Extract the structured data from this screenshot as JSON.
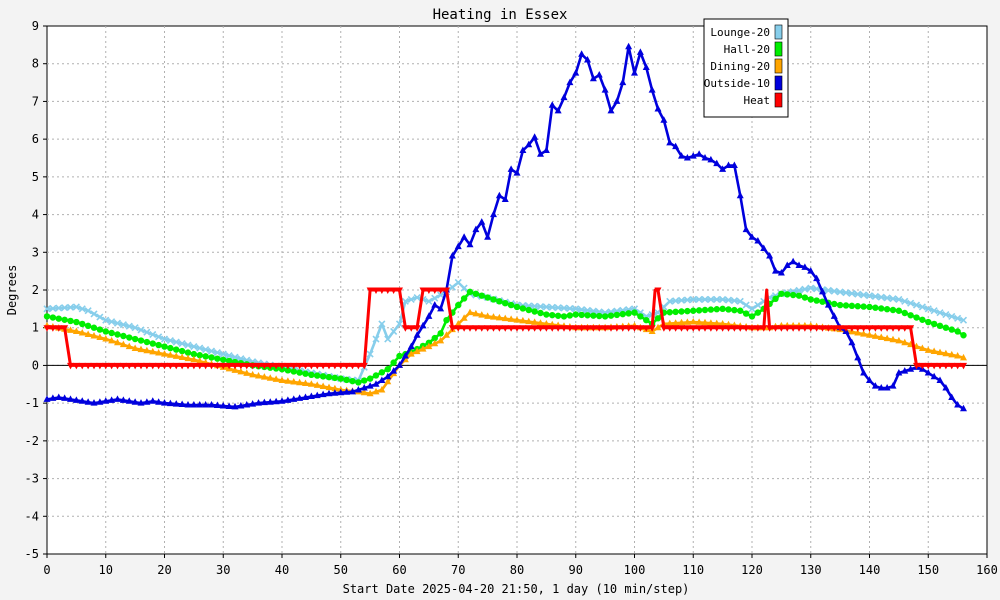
{
  "chart_data": {
    "type": "line",
    "title": "Heating in Essex",
    "xlabel": "Start Date 2025-04-20 21:50, 1 day (10 min/step)",
    "ylabel": "Degrees",
    "xlim": [
      0,
      160
    ],
    "ylim": [
      -5,
      9
    ],
    "x_ticks": [
      0,
      10,
      20,
      30,
      40,
      50,
      60,
      70,
      80,
      90,
      100,
      110,
      120,
      130,
      140,
      150,
      160
    ],
    "y_ticks": [
      -5,
      -4,
      -3,
      -2,
      -1,
      0,
      1,
      2,
      3,
      4,
      5,
      6,
      7,
      8,
      9
    ],
    "grid": true,
    "legend_position": "top-right",
    "series": [
      {
        "name": "Lounge-20",
        "color": "#87ceeb",
        "marker": "x",
        "points": [
          [
            0,
            1.5
          ],
          [
            5,
            1.55
          ],
          [
            7,
            1.45
          ],
          [
            10,
            1.2
          ],
          [
            15,
            1.0
          ],
          [
            20,
            0.7
          ],
          [
            25,
            0.5
          ],
          [
            30,
            0.3
          ],
          [
            35,
            0.1
          ],
          [
            40,
            -0.05
          ],
          [
            45,
            -0.2
          ],
          [
            50,
            -0.35
          ],
          [
            53,
            -0.4
          ],
          [
            55,
            0.3
          ],
          [
            57,
            1.1
          ],
          [
            58,
            0.7
          ],
          [
            60,
            1.1
          ],
          [
            61,
            1.7
          ],
          [
            63,
            1.8
          ],
          [
            65,
            1.7
          ],
          [
            68,
            1.95
          ],
          [
            70,
            2.2
          ],
          [
            72,
            1.9
          ],
          [
            75,
            1.8
          ],
          [
            80,
            1.6
          ],
          [
            85,
            1.55
          ],
          [
            90,
            1.5
          ],
          [
            95,
            1.4
          ],
          [
            100,
            1.5
          ],
          [
            102,
            1.3
          ],
          [
            104,
            1.4
          ],
          [
            106,
            1.7
          ],
          [
            110,
            1.75
          ],
          [
            115,
            1.75
          ],
          [
            118,
            1.7
          ],
          [
            120,
            1.5
          ],
          [
            123,
            1.8
          ],
          [
            125,
            1.9
          ],
          [
            130,
            2.05
          ],
          [
            135,
            1.95
          ],
          [
            140,
            1.85
          ],
          [
            145,
            1.75
          ],
          [
            150,
            1.5
          ],
          [
            155,
            1.25
          ],
          [
            156,
            1.2
          ]
        ]
      },
      {
        "name": "Hall-20",
        "color": "#00ee00",
        "marker": "circle",
        "points": [
          [
            0,
            1.3
          ],
          [
            5,
            1.15
          ],
          [
            10,
            0.9
          ],
          [
            15,
            0.7
          ],
          [
            20,
            0.5
          ],
          [
            25,
            0.3
          ],
          [
            30,
            0.15
          ],
          [
            35,
            0.0
          ],
          [
            40,
            -0.1
          ],
          [
            45,
            -0.25
          ],
          [
            50,
            -0.35
          ],
          [
            53,
            -0.45
          ],
          [
            55,
            -0.35
          ],
          [
            58,
            -0.1
          ],
          [
            60,
            0.25
          ],
          [
            62,
            0.35
          ],
          [
            65,
            0.6
          ],
          [
            67,
            0.85
          ],
          [
            68,
            1.2
          ],
          [
            70,
            1.6
          ],
          [
            72,
            1.95
          ],
          [
            75,
            1.8
          ],
          [
            80,
            1.55
          ],
          [
            85,
            1.35
          ],
          [
            88,
            1.3
          ],
          [
            90,
            1.35
          ],
          [
            95,
            1.3
          ],
          [
            100,
            1.4
          ],
          [
            103,
            1.1
          ],
          [
            105,
            1.4
          ],
          [
            110,
            1.45
          ],
          [
            115,
            1.5
          ],
          [
            118,
            1.45
          ],
          [
            120,
            1.3
          ],
          [
            122,
            1.5
          ],
          [
            125,
            1.9
          ],
          [
            128,
            1.85
          ],
          [
            130,
            1.75
          ],
          [
            135,
            1.6
          ],
          [
            140,
            1.55
          ],
          [
            145,
            1.45
          ],
          [
            150,
            1.15
          ],
          [
            155,
            0.9
          ],
          [
            156,
            0.8
          ]
        ]
      },
      {
        "name": "Dining-20",
        "color": "#ffa500",
        "marker": "triangle",
        "points": [
          [
            0,
            1.05
          ],
          [
            5,
            0.9
          ],
          [
            10,
            0.7
          ],
          [
            15,
            0.45
          ],
          [
            20,
            0.3
          ],
          [
            25,
            0.15
          ],
          [
            30,
            -0.05
          ],
          [
            35,
            -0.25
          ],
          [
            40,
            -0.4
          ],
          [
            45,
            -0.5
          ],
          [
            50,
            -0.65
          ],
          [
            53,
            -0.7
          ],
          [
            55,
            -0.75
          ],
          [
            57,
            -0.65
          ],
          [
            60,
            0.0
          ],
          [
            62,
            0.3
          ],
          [
            65,
            0.5
          ],
          [
            67,
            0.65
          ],
          [
            70,
            1.1
          ],
          [
            72,
            1.4
          ],
          [
            75,
            1.3
          ],
          [
            80,
            1.2
          ],
          [
            85,
            1.1
          ],
          [
            90,
            1.0
          ],
          [
            95,
            1.0
          ],
          [
            100,
            1.05
          ],
          [
            103,
            0.9
          ],
          [
            105,
            1.1
          ],
          [
            110,
            1.15
          ],
          [
            115,
            1.1
          ],
          [
            120,
            1.0
          ],
          [
            123,
            1.0
          ],
          [
            125,
            1.05
          ],
          [
            130,
            1.05
          ],
          [
            135,
            0.95
          ],
          [
            140,
            0.8
          ],
          [
            145,
            0.65
          ],
          [
            150,
            0.4
          ],
          [
            155,
            0.25
          ],
          [
            156,
            0.2
          ]
        ]
      },
      {
        "name": "Outside-10",
        "color": "#0000dd",
        "marker": "triangle",
        "points": [
          [
            0,
            -0.9
          ],
          [
            2,
            -0.85
          ],
          [
            4,
            -0.9
          ],
          [
            6,
            -0.95
          ],
          [
            8,
            -1.0
          ],
          [
            10,
            -0.95
          ],
          [
            12,
            -0.9
          ],
          [
            14,
            -0.95
          ],
          [
            16,
            -1.0
          ],
          [
            18,
            -0.95
          ],
          [
            20,
            -1.0
          ],
          [
            24,
            -1.05
          ],
          [
            28,
            -1.05
          ],
          [
            32,
            -1.1
          ],
          [
            36,
            -1.0
          ],
          [
            40,
            -0.95
          ],
          [
            44,
            -0.85
          ],
          [
            48,
            -0.75
          ],
          [
            52,
            -0.7
          ],
          [
            54,
            -0.6
          ],
          [
            56,
            -0.5
          ],
          [
            58,
            -0.3
          ],
          [
            60,
            0.0
          ],
          [
            61,
            0.25
          ],
          [
            62,
            0.5
          ],
          [
            63,
            0.8
          ],
          [
            65,
            1.3
          ],
          [
            66,
            1.6
          ],
          [
            67,
            1.5
          ],
          [
            68,
            2.0
          ],
          [
            69,
            2.9
          ],
          [
            71,
            3.4
          ],
          [
            72,
            3.2
          ],
          [
            73,
            3.6
          ],
          [
            74,
            3.8
          ],
          [
            75,
            3.4
          ],
          [
            76,
            4.0
          ],
          [
            77,
            4.5
          ],
          [
            78,
            4.4
          ],
          [
            79,
            5.2
          ],
          [
            80,
            5.1
          ],
          [
            81,
            5.7
          ],
          [
            82,
            5.85
          ],
          [
            83,
            6.05
          ],
          [
            84,
            5.6
          ],
          [
            85,
            5.7
          ],
          [
            86,
            6.9
          ],
          [
            87,
            6.75
          ],
          [
            88,
            7.1
          ],
          [
            89,
            7.5
          ],
          [
            90,
            7.75
          ],
          [
            91,
            8.25
          ],
          [
            92,
            8.1
          ],
          [
            93,
            7.6
          ],
          [
            94,
            7.7
          ],
          [
            95,
            7.3
          ],
          [
            96,
            6.75
          ],
          [
            97,
            7.0
          ],
          [
            98,
            7.5
          ],
          [
            99,
            8.45
          ],
          [
            100,
            7.75
          ],
          [
            101,
            8.3
          ],
          [
            102,
            7.9
          ],
          [
            103,
            7.3
          ],
          [
            104,
            6.8
          ],
          [
            105,
            6.5
          ],
          [
            106,
            5.9
          ],
          [
            107,
            5.8
          ],
          [
            108,
            5.55
          ],
          [
            109,
            5.5
          ],
          [
            110,
            5.55
          ],
          [
            111,
            5.6
          ],
          [
            112,
            5.5
          ],
          [
            113,
            5.45
          ],
          [
            114,
            5.35
          ],
          [
            115,
            5.2
          ],
          [
            116,
            5.3
          ],
          [
            117,
            5.3
          ],
          [
            118,
            4.5
          ],
          [
            119,
            3.6
          ],
          [
            120,
            3.4
          ],
          [
            121,
            3.3
          ],
          [
            122,
            3.1
          ],
          [
            123,
            2.9
          ],
          [
            124,
            2.5
          ],
          [
            125,
            2.45
          ],
          [
            126,
            2.65
          ],
          [
            127,
            2.75
          ],
          [
            128,
            2.65
          ],
          [
            129,
            2.6
          ],
          [
            130,
            2.5
          ],
          [
            131,
            2.3
          ],
          [
            132,
            1.95
          ],
          [
            133,
            1.6
          ],
          [
            134,
            1.3
          ],
          [
            135,
            1.0
          ],
          [
            136,
            0.9
          ],
          [
            137,
            0.6
          ],
          [
            138,
            0.2
          ],
          [
            139,
            -0.2
          ],
          [
            140,
            -0.4
          ],
          [
            141,
            -0.55
          ],
          [
            142,
            -0.6
          ],
          [
            143,
            -0.6
          ],
          [
            144,
            -0.55
          ],
          [
            145,
            -0.2
          ],
          [
            146,
            -0.15
          ],
          [
            147,
            -0.1
          ],
          [
            148,
            -0.05
          ],
          [
            149,
            -0.1
          ],
          [
            150,
            -0.2
          ],
          [
            151,
            -0.3
          ],
          [
            152,
            -0.4
          ],
          [
            153,
            -0.6
          ],
          [
            154,
            -0.85
          ],
          [
            155,
            -1.05
          ],
          [
            156,
            -1.15
          ]
        ]
      },
      {
        "name": "Heat",
        "color": "#ff0000",
        "marker": "triangle-down",
        "points": [
          [
            0,
            1
          ],
          [
            3,
            1
          ],
          [
            4,
            0
          ],
          [
            54,
            0
          ],
          [
            55,
            2
          ],
          [
            60,
            2
          ],
          [
            61,
            1
          ],
          [
            63,
            1
          ],
          [
            64,
            2
          ],
          [
            68,
            2
          ],
          [
            69,
            1
          ],
          [
            103,
            1
          ],
          [
            103.5,
            2
          ],
          [
            104,
            2
          ],
          [
            105,
            1
          ],
          [
            122,
            1
          ],
          [
            122.5,
            2
          ],
          [
            123,
            1
          ],
          [
            147,
            1
          ],
          [
            148,
            0
          ],
          [
            156,
            0
          ]
        ]
      }
    ]
  }
}
